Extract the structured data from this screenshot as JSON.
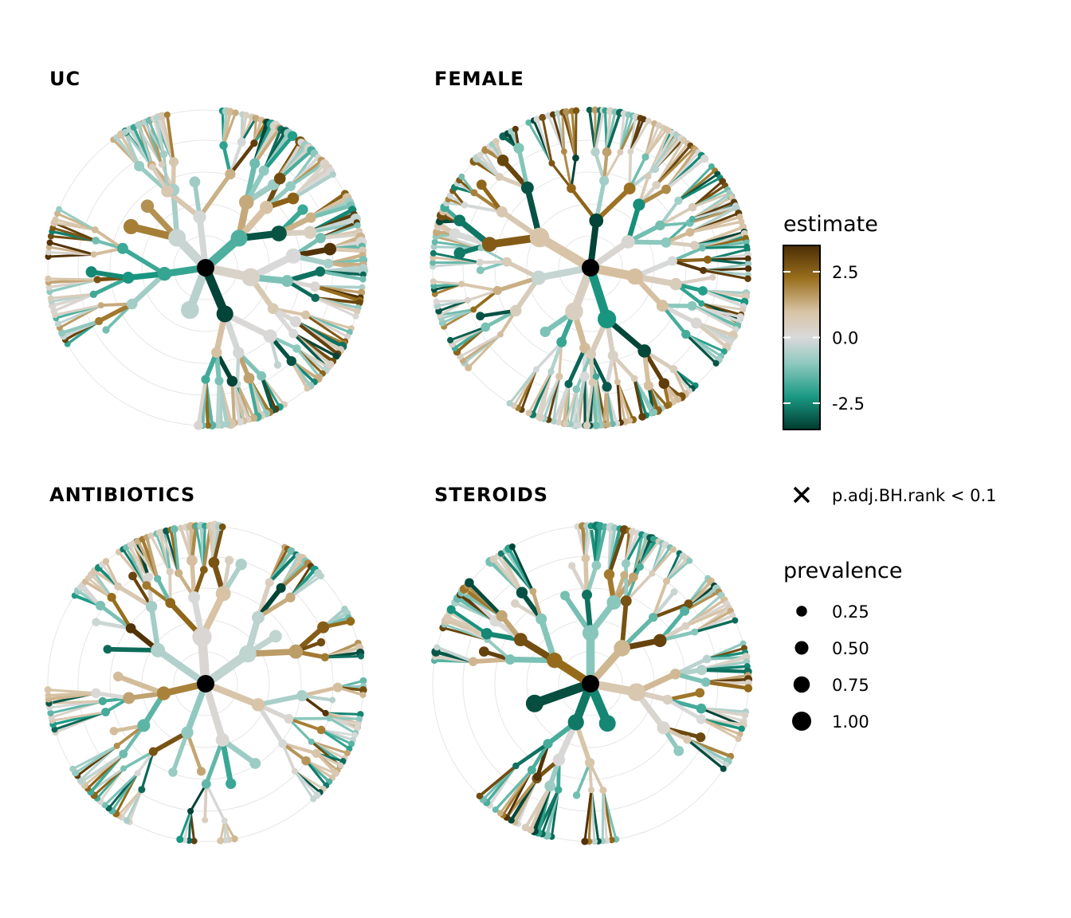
{
  "chart_data": {
    "type": "heat-tree",
    "panels": [
      {
        "title": "UC",
        "seed": 11
      },
      {
        "title": "FEMALE",
        "seed": 23
      },
      {
        "title": "ANTIBIOTICS",
        "seed": 37
      },
      {
        "title": "STEROIDS",
        "seed": 53
      }
    ],
    "color_legend": {
      "title": "estimate",
      "ticks": [
        {
          "label": "2.5",
          "value": 2.5
        },
        {
          "label": "0.0",
          "value": 0.0
        },
        {
          "label": "-2.5",
          "value": -2.5
        }
      ],
      "range": [
        -3.5,
        3.5
      ],
      "colors": {
        "high": "#4b2c05",
        "mid_high": "#9a6f1d",
        "light_high": "#d8c3a5",
        "mid": "#d9d9d9",
        "light_low": "#8fc9bf",
        "mid_low": "#1a9a84",
        "low": "#003c30"
      }
    },
    "shape_legend": {
      "symbol": "×",
      "label": "p.adj.BH.rank < 0.1"
    },
    "size_legend": {
      "title": "prevalence",
      "items": [
        {
          "label": "0.25",
          "value": 0.25
        },
        {
          "label": "0.50",
          "value": 0.5
        },
        {
          "label": "0.75",
          "value": 0.75
        },
        {
          "label": "1.00",
          "value": 1.0
        }
      ]
    }
  }
}
